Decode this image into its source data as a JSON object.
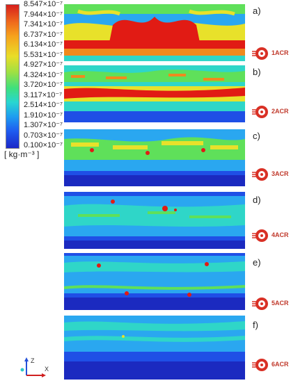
{
  "legend": {
    "values": [
      "8.547×10⁻⁷",
      "7.944×10⁻⁷",
      "7.341×10⁻⁷",
      "6.737×10⁻⁷",
      "6.134×10⁻⁷",
      "5.531×10⁻⁷",
      "4.927×10⁻⁷",
      "4.324×10⁻⁷",
      "3.720×10⁻⁷",
      "3.117×10⁻⁷",
      "2.514×10⁻⁷",
      "1.910×10⁻⁷",
      "1.307×10⁻⁷",
      "0.703×10⁻⁷",
      "0.100×10⁻⁷"
    ],
    "unit": "[ kg·m⁻³ ]"
  },
  "panels": [
    {
      "tag": "a)",
      "fan_label": "1ACR"
    },
    {
      "tag": "b)",
      "fan_label": "2ACR"
    },
    {
      "tag": "c)",
      "fan_label": "3ACR"
    },
    {
      "tag": "d)",
      "fan_label": "4ACR"
    },
    {
      "tag": "e)",
      "fan_label": "5ACR"
    },
    {
      "tag": "f)",
      "fan_label": "6ACR"
    }
  ],
  "axes": {
    "z": "Z",
    "x": "X"
  },
  "colors": {
    "red": "#e11b14",
    "orange": "#f08a1d",
    "yellow": "#e8e12a",
    "green": "#5fe05a",
    "cyan": "#2fd6c8",
    "lightblue": "#2aa7f0",
    "blue": "#1f4fe6",
    "darkblue": "#1b2ac0",
    "fan": "#d93025"
  }
}
